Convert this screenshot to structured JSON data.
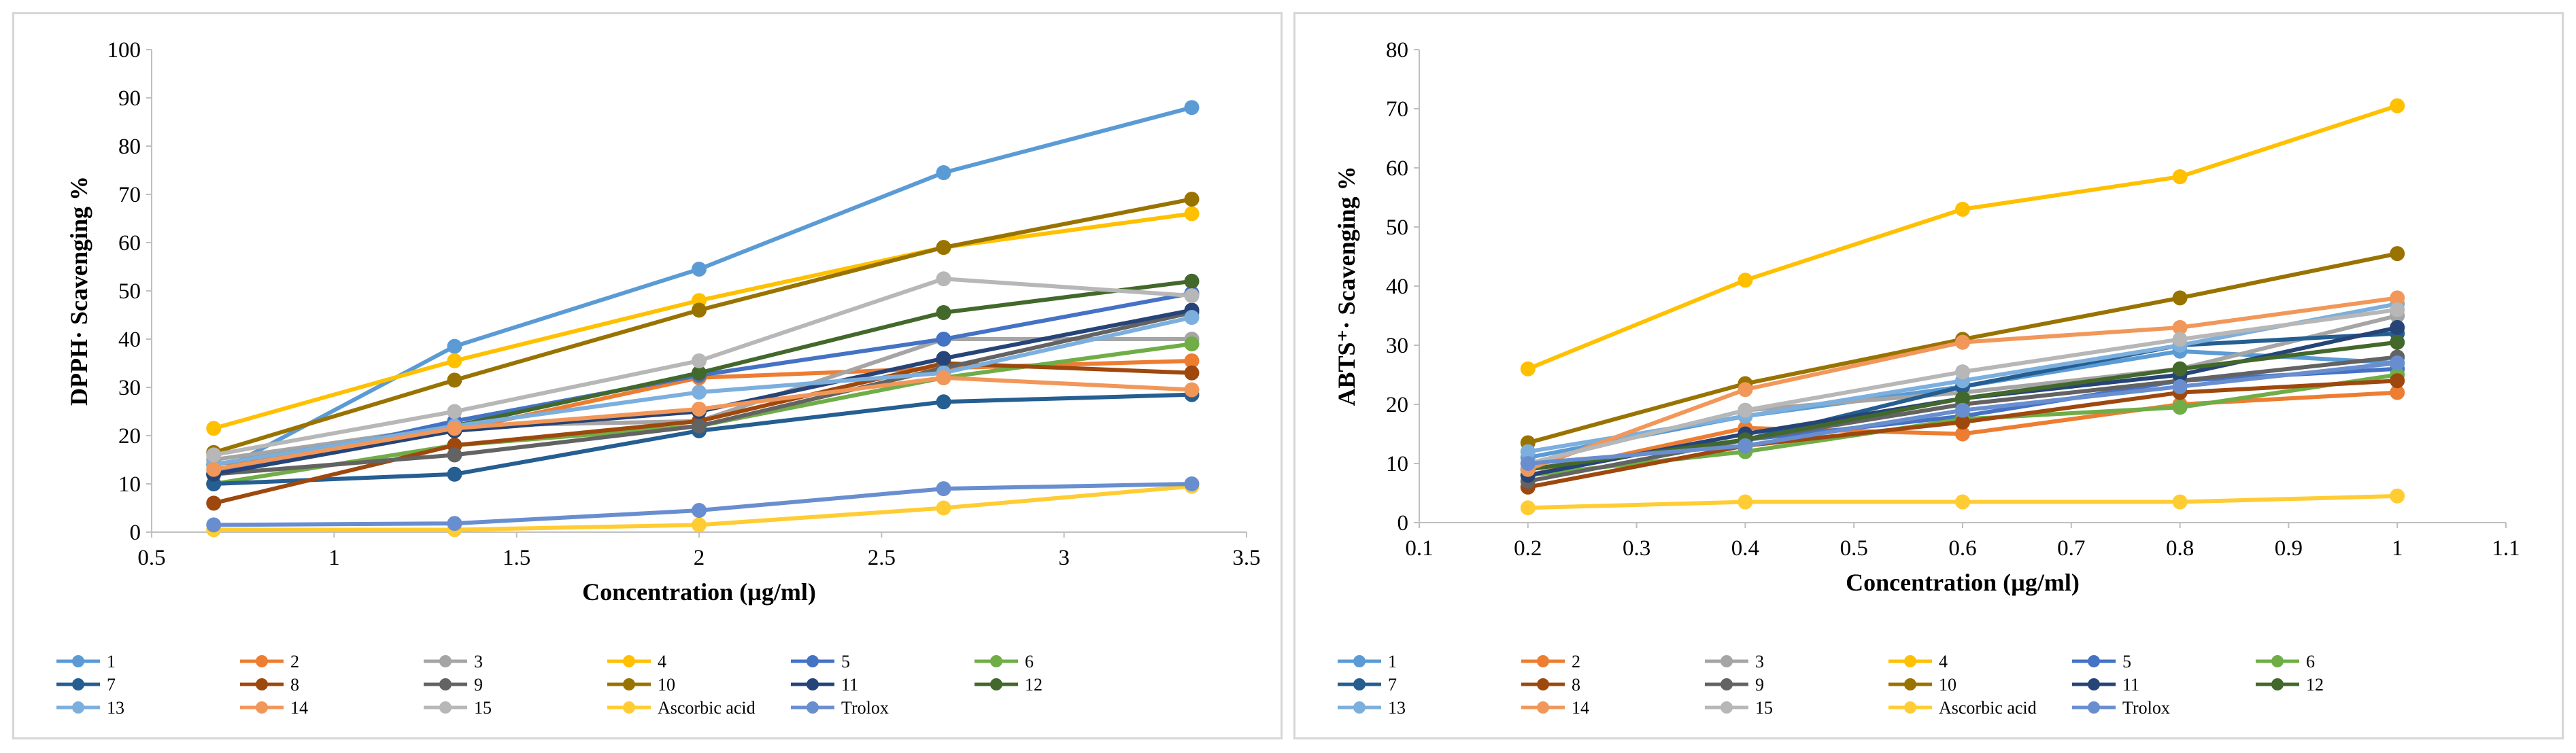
{
  "chart_data": [
    {
      "type": "line",
      "title": "",
      "xlabel": "Concentration (µg/ml)",
      "ylabel": "DPPH· Scavenging %",
      "xlim": [
        0.5,
        3.5
      ],
      "ylim": [
        0,
        100
      ],
      "xticks": [
        0.5,
        1,
        1.5,
        2,
        2.5,
        3,
        3.5
      ],
      "xtick_labels": [
        "0.5",
        "1",
        "1.5",
        "2",
        "2.5",
        "3",
        "3.5"
      ],
      "yticks": [
        0,
        10,
        20,
        30,
        40,
        50,
        60,
        70,
        80,
        90,
        100
      ],
      "ytick_labels": [
        "0",
        "10",
        "20",
        "30",
        "40",
        "50",
        "60",
        "70",
        "80",
        "90",
        "100"
      ],
      "grid": false,
      "legend_position": "bottom",
      "x": [
        0.67,
        1.33,
        2.0,
        2.67,
        3.35
      ],
      "series": [
        {
          "name": "1",
          "color": "#5b9bd5",
          "values": [
            12,
            38.5,
            54.5,
            74.5,
            88
          ]
        },
        {
          "name": "2",
          "color": "#ed7d31",
          "values": [
            14,
            21,
            32,
            34,
            35.5
          ]
        },
        {
          "name": "3",
          "color": "#a5a5a5",
          "values": [
            15,
            22,
            23,
            40,
            40
          ]
        },
        {
          "name": "4",
          "color": "#ffc000",
          "values": [
            21.5,
            35.5,
            48,
            59,
            66
          ]
        },
        {
          "name": "5",
          "color": "#4472c4",
          "values": [
            12,
            23,
            32.5,
            40,
            49.5
          ]
        },
        {
          "name": "6",
          "color": "#70ad47",
          "values": [
            10,
            18,
            22,
            32,
            39
          ]
        },
        {
          "name": "7",
          "color": "#255e91",
          "values": [
            10,
            12,
            21,
            27,
            28.5
          ]
        },
        {
          "name": "8",
          "color": "#9e480e",
          "values": [
            6,
            18,
            23,
            35,
            33
          ]
        },
        {
          "name": "9",
          "color": "#636363",
          "values": [
            12,
            16,
            22,
            34,
            45.5
          ]
        },
        {
          "name": "10",
          "color": "#997300",
          "values": [
            16.5,
            31.5,
            46,
            59,
            69
          ]
        },
        {
          "name": "11",
          "color": "#264478",
          "values": [
            12,
            21,
            25,
            36,
            46
          ]
        },
        {
          "name": "12",
          "color": "#43682b",
          "values": [
            14,
            22,
            33,
            45.5,
            52
          ]
        },
        {
          "name": "13",
          "color": "#7cafdd",
          "values": [
            14,
            22,
            29,
            33,
            44.5
          ]
        },
        {
          "name": "14",
          "color": "#f1975a",
          "values": [
            13,
            21.5,
            25.5,
            32,
            29.5
          ]
        },
        {
          "name": "15",
          "color": "#b7b7b7",
          "values": [
            16,
            25,
            35.5,
            52.5,
            49
          ]
        },
        {
          "name": "Ascorbic acid",
          "color": "#ffcd33",
          "values": [
            0.5,
            0.5,
            1.5,
            5,
            9.5
          ]
        },
        {
          "name": "Trolox",
          "color": "#698ed0",
          "values": [
            1.5,
            1.8,
            4.5,
            9,
            10
          ]
        }
      ]
    },
    {
      "type": "line",
      "title": "",
      "xlabel": "Concentration (µg/ml)",
      "ylabel": "ABTS⁺· Scavenging %",
      "xlim": [
        0.1,
        1.1
      ],
      "ylim": [
        0,
        80
      ],
      "xticks": [
        0.1,
        0.2,
        0.3,
        0.4,
        0.5,
        0.6,
        0.7,
        0.8,
        0.9,
        1.0,
        1.1
      ],
      "xtick_labels": [
        "0.1",
        "0.2",
        "0.3",
        "0.4",
        "0.5",
        "0.6",
        "0.7",
        "0.8",
        "0.9",
        "1",
        "1.1"
      ],
      "yticks": [
        0,
        10,
        20,
        30,
        40,
        50,
        60,
        70,
        80
      ],
      "ytick_labels": [
        "0",
        "10",
        "20",
        "30",
        "40",
        "50",
        "60",
        "70",
        "80"
      ],
      "grid": false,
      "legend_position": "bottom",
      "x": [
        0.2,
        0.4,
        0.6,
        0.8,
        1.0
      ],
      "series": [
        {
          "name": "1",
          "color": "#5b9bd5",
          "values": [
            11,
            18,
            23,
            29,
            27
          ]
        },
        {
          "name": "2",
          "color": "#ed7d31",
          "values": [
            8,
            16,
            15,
            20,
            22
          ]
        },
        {
          "name": "3",
          "color": "#a5a5a5",
          "values": [
            10,
            19,
            22,
            26,
            35
          ]
        },
        {
          "name": "4",
          "color": "#ffc000",
          "values": [
            26,
            41,
            53,
            58.5,
            70.5
          ]
        },
        {
          "name": "5",
          "color": "#4472c4",
          "values": [
            9,
            14,
            18,
            24,
            26
          ]
        },
        {
          "name": "6",
          "color": "#70ad47",
          "values": [
            8,
            12,
            17.5,
            19.5,
            25
          ]
        },
        {
          "name": "7",
          "color": "#255e91",
          "values": [
            9,
            14,
            23,
            30,
            32
          ]
        },
        {
          "name": "8",
          "color": "#9e480e",
          "values": [
            6,
            13,
            17,
            22,
            24
          ]
        },
        {
          "name": "9",
          "color": "#636363",
          "values": [
            7,
            14,
            20,
            24,
            28
          ]
        },
        {
          "name": "10",
          "color": "#997300",
          "values": [
            13.5,
            23.5,
            31,
            38,
            45.5
          ]
        },
        {
          "name": "11",
          "color": "#264478",
          "values": [
            8,
            15,
            21,
            25,
            33
          ]
        },
        {
          "name": "12",
          "color": "#43682b",
          "values": [
            9,
            14,
            21,
            26,
            30.5
          ]
        },
        {
          "name": "13",
          "color": "#7cafdd",
          "values": [
            12,
            18,
            24,
            30,
            37
          ]
        },
        {
          "name": "14",
          "color": "#f1975a",
          "values": [
            9,
            22.5,
            30.5,
            33,
            38
          ]
        },
        {
          "name": "15",
          "color": "#b7b7b7",
          "values": [
            10,
            19,
            25.5,
            31,
            36
          ]
        },
        {
          "name": "Ascorbic acid",
          "color": "#ffcd33",
          "values": [
            2.5,
            3.5,
            3.5,
            3.5,
            4.5
          ]
        },
        {
          "name": "Trolox",
          "color": "#698ed0",
          "values": [
            10,
            13,
            19,
            23,
            27
          ]
        }
      ]
    }
  ]
}
